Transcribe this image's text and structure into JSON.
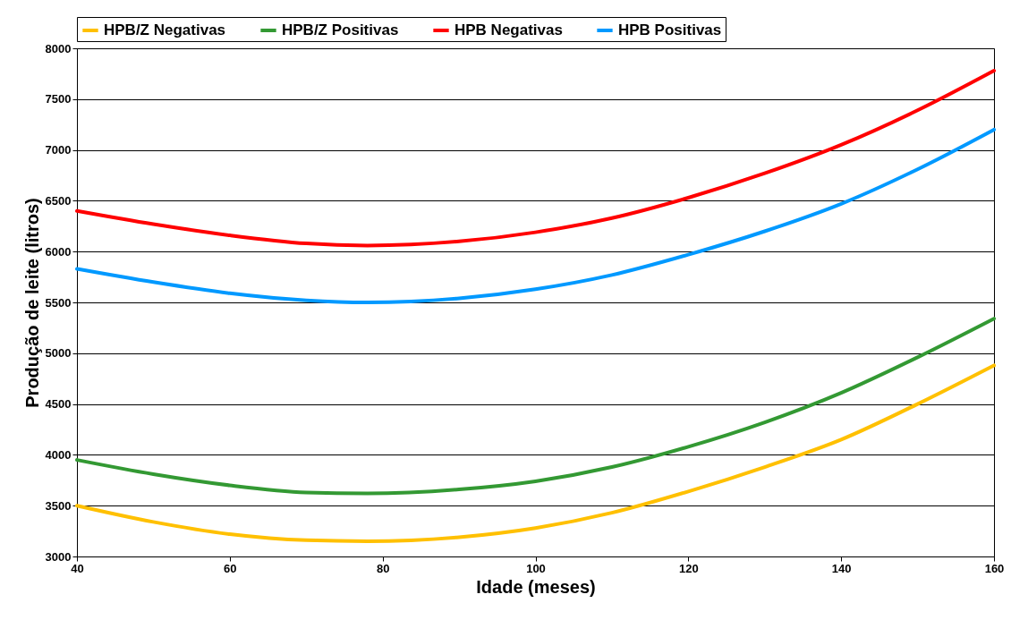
{
  "chart_data": {
    "type": "line",
    "xlabel": "Idade (meses)",
    "ylabel": "Produção de leite (litros)",
    "x": [
      40,
      50,
      60,
      70,
      78,
      90,
      100,
      110,
      120,
      130,
      140,
      150,
      160
    ],
    "series": [
      {
        "name": "HPB/Z Negativas",
        "color": "#ffc000",
        "values": [
          3500,
          3340,
          3220,
          3160,
          3150,
          3190,
          3280,
          3430,
          3640,
          3880,
          4150,
          4500,
          4880
        ]
      },
      {
        "name": "HPB/Z Positivas",
        "color": "#339933",
        "values": [
          3950,
          3810,
          3700,
          3630,
          3620,
          3660,
          3740,
          3880,
          4080,
          4320,
          4610,
          4960,
          5340
        ]
      },
      {
        "name": "HPB Negativas",
        "color": "#ff0000",
        "values": [
          6400,
          6270,
          6160,
          6080,
          6060,
          6100,
          6190,
          6330,
          6530,
          6770,
          7050,
          7390,
          7780
        ]
      },
      {
        "name": "HPB Positivas",
        "color": "#0099ff",
        "values": [
          5830,
          5700,
          5590,
          5520,
          5500,
          5540,
          5630,
          5770,
          5970,
          6200,
          6470,
          6810,
          7200
        ]
      }
    ],
    "xlim": [
      40,
      160
    ],
    "xticks": [
      40,
      60,
      80,
      100,
      120,
      140,
      160
    ],
    "ylim": [
      3000,
      8000
    ],
    "yticks": [
      3000,
      3500,
      4000,
      4500,
      5000,
      5500,
      6000,
      6500,
      7000,
      7500,
      8000
    ],
    "grid": "y",
    "legend": "top",
    "marker": "none",
    "line_style": "solid"
  }
}
